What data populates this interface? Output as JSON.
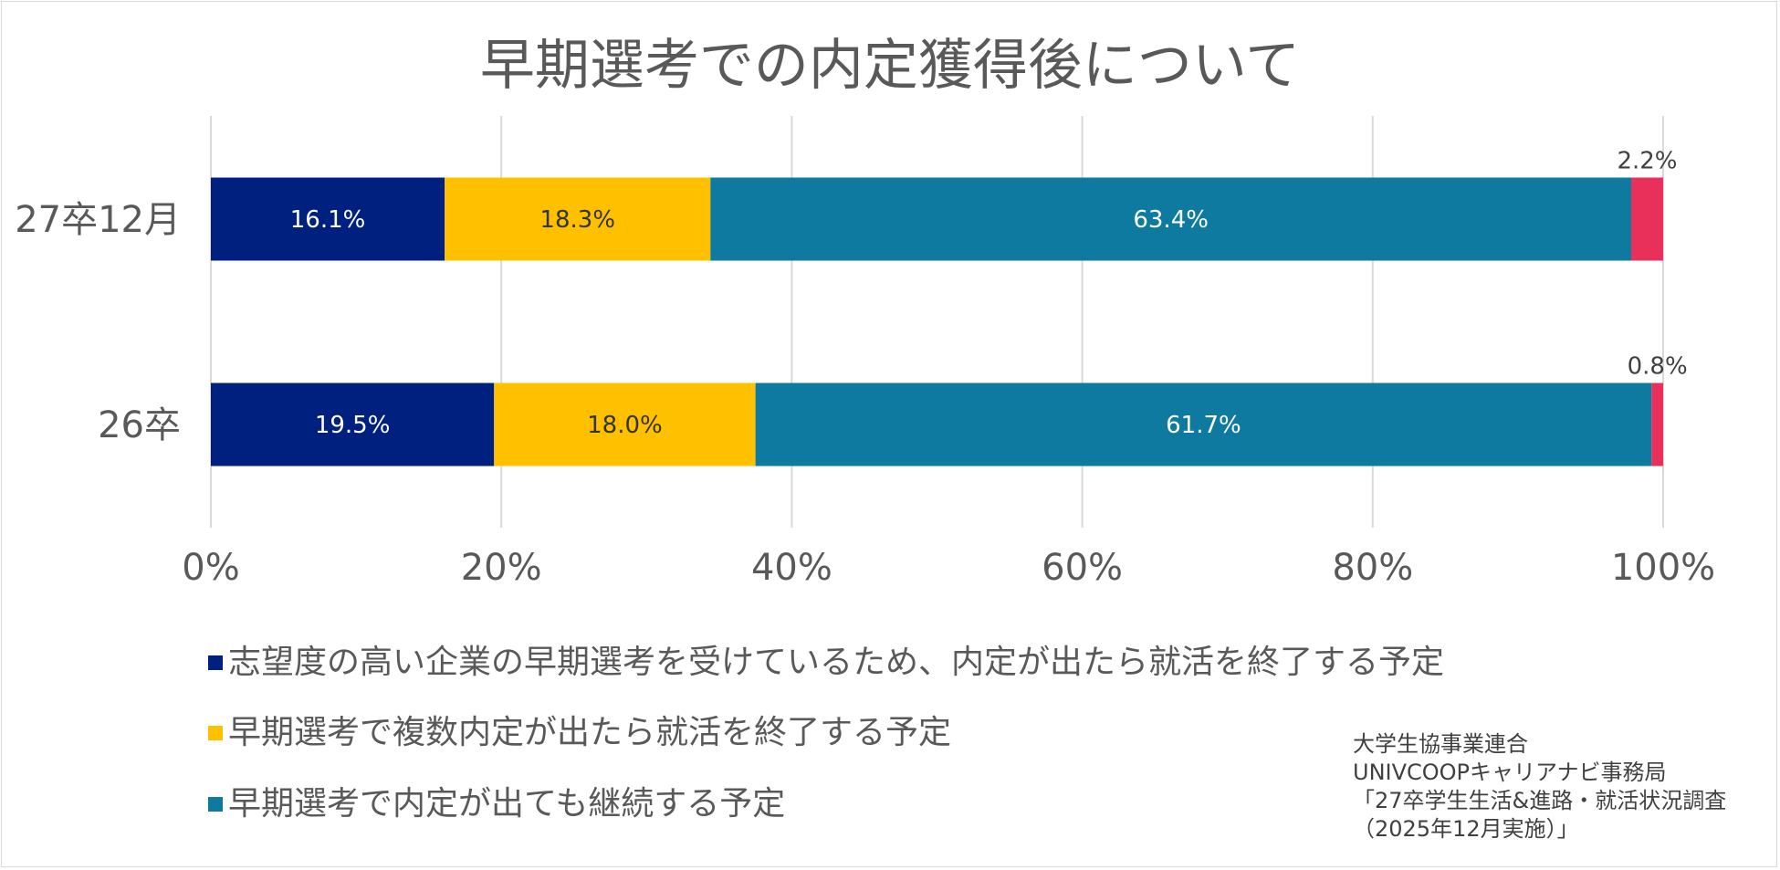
{
  "chart_data": {
    "type": "bar",
    "orientation": "horizontal",
    "stacked": "percent",
    "title": "早期選考での内定獲得後について",
    "categories": [
      "27卒12月",
      "26卒"
    ],
    "series": [
      {
        "name": "志望度の高い企業の早期選考を受けているため、内定が出たら就活を終了する予定",
        "color": "#002080",
        "label_color": "#ffffff",
        "values": [
          16.1,
          19.5
        ],
        "labels": [
          "16.1%",
          "19.5%"
        ]
      },
      {
        "name": "早期選考で複数内定が出たら就活を終了する予定",
        "color": "#ffc000",
        "label_color": "#333333",
        "values": [
          18.3,
          18.0
        ],
        "labels": [
          "18.3%",
          "18.0%"
        ]
      },
      {
        "name": "早期選考で内定が出ても継続する予定",
        "color": "#0e7aa0",
        "label_color": "#ffffff",
        "values": [
          63.4,
          61.7
        ],
        "labels": [
          "63.4%",
          "61.7%"
        ]
      },
      {
        "name": "",
        "color": "#e8305a",
        "label_color": "#404040",
        "values": [
          2.2,
          0.8
        ],
        "labels": [
          "2.2%",
          "0.8%"
        ],
        "label_position": "above"
      }
    ],
    "xlim": [
      0,
      100
    ],
    "xticks": [
      "0%",
      "20%",
      "40%",
      "60%",
      "80%",
      "100%"
    ],
    "grid": true,
    "legend_position": "bottom-left"
  },
  "legend_items": [
    "志望度の高い企業の早期選考を受けているため、内定が出たら就活を終了する予定",
    "早期選考で複数内定が出たら就活を終了する予定",
    "早期選考で内定が出ても継続する予定"
  ],
  "source_text": "大学生協事業連合\nUNIVCOOPキャリアナビ事務局\n「27卒学生生活&進路・就活状況調査\n（2025年12月実施）」"
}
